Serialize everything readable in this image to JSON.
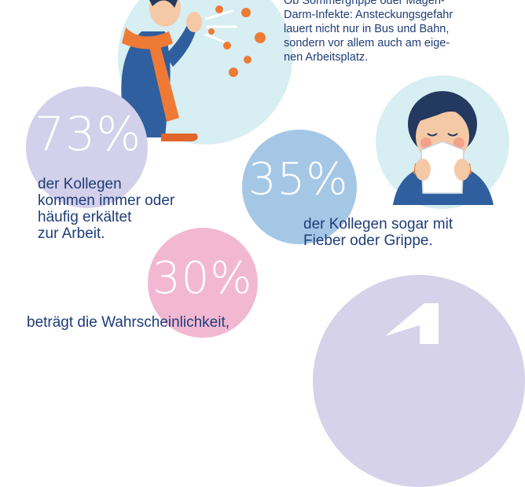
{
  "intro": {
    "lines": [
      "Ob Sommergrippe oder Magen-",
      "Darm-Infekte: Ansteckungsgefahr",
      "lauert nicht nur in Bus und Bahn,",
      "sondern vor allem auch am eige-",
      "nen Arbeitsplatz."
    ]
  },
  "stats": [
    {
      "value": "73%",
      "lines": [
        "der Kollegen",
        "kommen immer oder",
        "häufig erkältet",
        "zur Arbeit."
      ]
    },
    {
      "value": "35%",
      "lines": [
        "der Kollegen sogar mit",
        "Fieber oder Grippe."
      ]
    },
    {
      "value": "30%",
      "lines": [
        "beträgt die Wahrscheinlichkeit,"
      ]
    }
  ],
  "colors": {
    "text": "#1f3c78",
    "bubble_73": "#d2d0ea",
    "bubble_35": "#a5c7e6",
    "bubble_30": "#f2b8d2",
    "bubble_bottom": "#d5d2ea",
    "scene_bg": "#d7eef2"
  },
  "icons": [
    "sneezing-man-illustration",
    "woman-blowing-nose-illustration",
    "virus-icon"
  ]
}
